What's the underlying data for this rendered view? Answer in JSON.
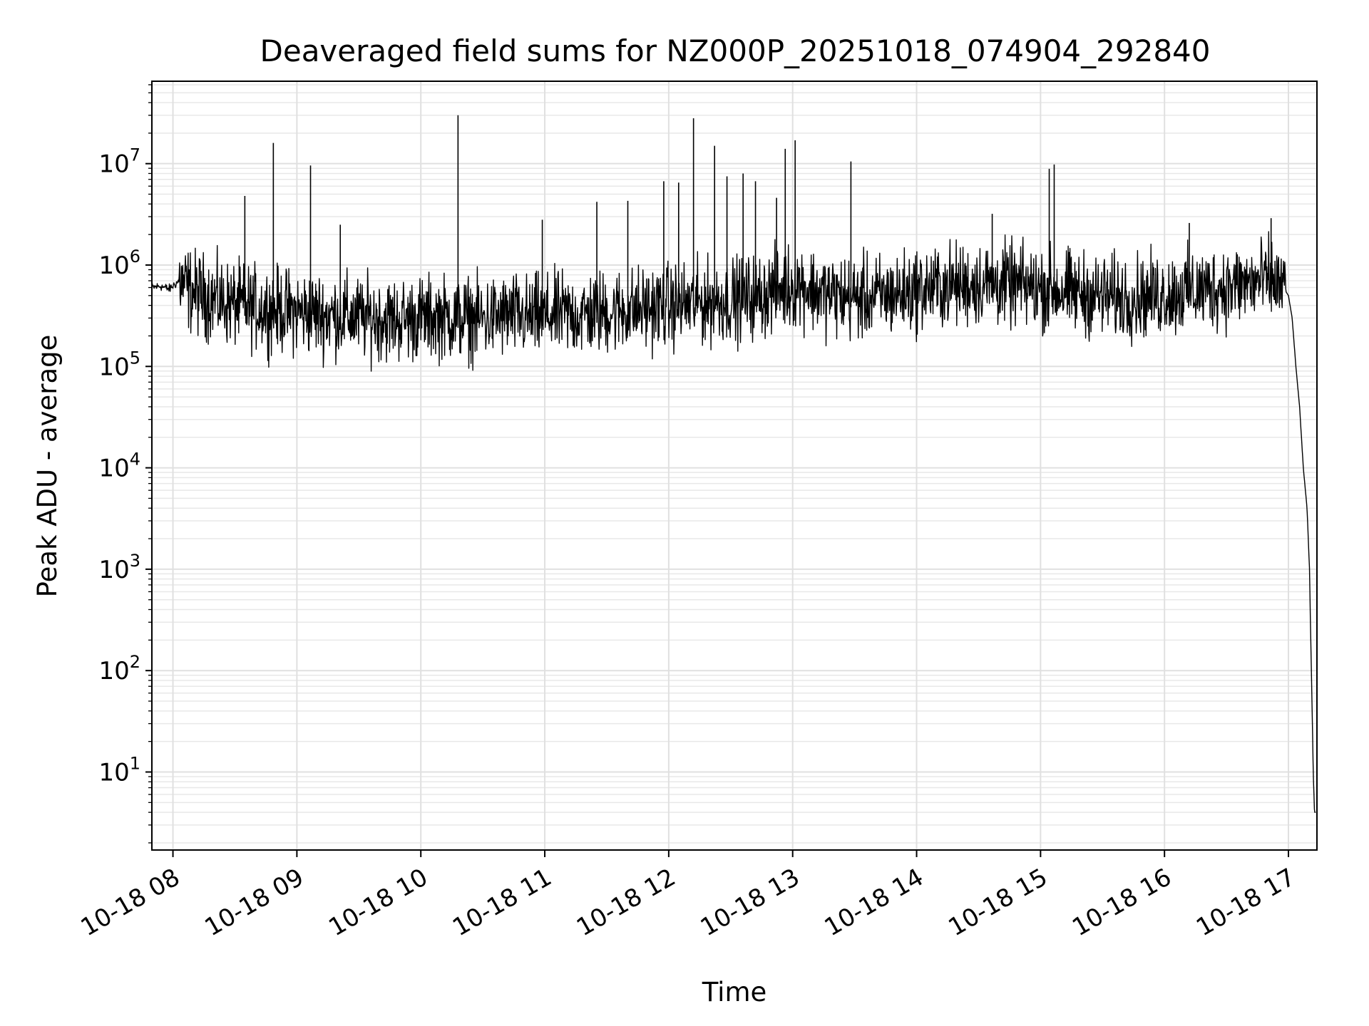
{
  "chart_data": {
    "type": "line",
    "title": "Deaveraged field sums for NZ000P_20251018_074904_292840",
    "xlabel": "Time",
    "ylabel": "Peak ADU - average",
    "yscale": "log",
    "ylim": [
      1.7,
      65000000
    ],
    "xlim_hours": [
      7.83,
      17.23
    ],
    "grid": true,
    "minor_grid": true,
    "x_ticks": [
      {
        "hour": 8,
        "label": "10-18 08"
      },
      {
        "hour": 9,
        "label": "10-18 09"
      },
      {
        "hour": 10,
        "label": "10-18 10"
      },
      {
        "hour": 11,
        "label": "10-18 11"
      },
      {
        "hour": 12,
        "label": "10-18 12"
      },
      {
        "hour": 13,
        "label": "10-18 13"
      },
      {
        "hour": 14,
        "label": "10-18 14"
      },
      {
        "hour": 15,
        "label": "10-18 15"
      },
      {
        "hour": 16,
        "label": "10-18 16"
      },
      {
        "hour": 17,
        "label": "10-18 17"
      }
    ],
    "y_ticks": [
      {
        "exp": 1,
        "base": "10",
        "sup": "1"
      },
      {
        "exp": 2,
        "base": "10",
        "sup": "2"
      },
      {
        "exp": 3,
        "base": "10",
        "sup": "3"
      },
      {
        "exp": 4,
        "base": "10",
        "sup": "4"
      },
      {
        "exp": 5,
        "base": "10",
        "sup": "5"
      },
      {
        "exp": 6,
        "base": "10",
        "sup": "6"
      },
      {
        "exp": 7,
        "base": "10",
        "sup": "7"
      }
    ],
    "series": [
      {
        "name": "field sum",
        "color": "#000000",
        "x_hours": [
          7.83,
          7.9,
          7.97,
          8.05,
          8.15,
          8.25,
          8.35,
          8.45,
          8.55,
          8.65,
          8.75,
          8.85,
          8.95,
          9.05,
          9.15,
          9.25,
          9.35,
          9.45,
          9.55,
          9.65,
          9.75,
          9.85,
          9.95,
          10.05,
          10.15,
          10.25,
          10.35,
          10.45,
          10.55,
          10.65,
          10.75,
          10.85,
          10.95,
          11.05,
          11.15,
          11.25,
          11.35,
          11.45,
          11.55,
          11.65,
          11.75,
          11.85,
          11.95,
          12.05,
          12.15,
          12.25,
          12.35,
          12.45,
          12.55,
          12.65,
          12.75,
          12.85,
          12.95,
          13.05,
          13.15,
          13.25,
          13.35,
          13.45,
          13.55,
          13.65,
          13.75,
          13.85,
          13.95,
          14.05,
          14.15,
          14.25,
          14.35,
          14.45,
          14.55,
          14.65,
          14.75,
          14.85,
          14.95,
          15.05,
          15.15,
          15.25,
          15.35,
          15.45,
          15.55,
          15.65,
          15.75,
          15.85,
          15.95,
          16.05,
          16.15,
          16.25,
          16.35,
          16.45,
          16.55,
          16.65,
          16.75,
          16.85,
          16.95,
          17.0,
          17.03,
          17.06,
          17.09,
          17.12,
          17.15,
          17.17,
          17.18,
          17.19,
          17.2,
          17.21,
          17.22
        ],
        "typical": [
          600000,
          620000,
          580000,
          700000,
          550000,
          500000,
          450000,
          420000,
          400000,
          380000,
          370000,
          360000,
          350000,
          340000,
          330000,
          320000,
          320000,
          310000,
          300000,
          300000,
          290000,
          290000,
          300000,
          300000,
          310000,
          300000,
          300000,
          290000,
          300000,
          310000,
          320000,
          300000,
          310000,
          320000,
          330000,
          320000,
          330000,
          340000,
          350000,
          360000,
          370000,
          380000,
          390000,
          400000,
          410000,
          420000,
          430000,
          450000,
          460000,
          480000,
          500000,
          560000,
          600000,
          650000,
          580000,
          520000,
          500000,
          480000,
          470000,
          480000,
          500000,
          520000,
          550000,
          580000,
          600000,
          620000,
          640000,
          650000,
          660000,
          650000,
          640000,
          620000,
          600000,
          580000,
          560000,
          540000,
          520000,
          500000,
          490000,
          480000,
          480000,
          490000,
          500000,
          520000,
          540000,
          560000,
          580000,
          600000,
          620000,
          650000,
          680000,
          700000,
          620000,
          500000,
          300000,
          100000,
          40000,
          10000,
          4000,
          1000,
          200,
          50,
          10,
          4,
          4
        ],
        "spikes": [
          {
            "hour": 8.58,
            "value": 4800000
          },
          {
            "hour": 8.81,
            "value": 16000000
          },
          {
            "hour": 9.11,
            "value": 9600000
          },
          {
            "hour": 9.35,
            "value": 2500000
          },
          {
            "hour": 10.3,
            "value": 30000000
          },
          {
            "hour": 10.98,
            "value": 2800000
          },
          {
            "hour": 11.42,
            "value": 4200000
          },
          {
            "hour": 11.67,
            "value": 4300000
          },
          {
            "hour": 11.96,
            "value": 6700000
          },
          {
            "hour": 12.08,
            "value": 6500000
          },
          {
            "hour": 12.2,
            "value": 28000000
          },
          {
            "hour": 12.37,
            "value": 15000000
          },
          {
            "hour": 12.47,
            "value": 7500000
          },
          {
            "hour": 12.6,
            "value": 8000000
          },
          {
            "hour": 12.7,
            "value": 6700000
          },
          {
            "hour": 12.87,
            "value": 4600000
          },
          {
            "hour": 12.94,
            "value": 14000000
          },
          {
            "hour": 13.02,
            "value": 17000000
          },
          {
            "hour": 13.47,
            "value": 10500000
          },
          {
            "hour": 14.61,
            "value": 3200000
          },
          {
            "hour": 15.07,
            "value": 8900000
          },
          {
            "hour": 15.11,
            "value": 9800000
          },
          {
            "hour": 16.2,
            "value": 2600000
          },
          {
            "hour": 16.86,
            "value": 2900000
          }
        ]
      }
    ]
  }
}
